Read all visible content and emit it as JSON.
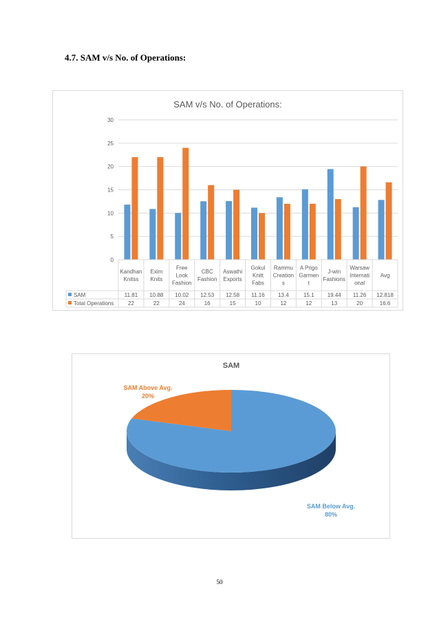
{
  "section_heading": "4.7. SAM v/s No. of Operations:",
  "page_number": "50",
  "colors": {
    "sam": "#5b9bd5",
    "operations": "#ed7d31",
    "grid": "#d9d9d9",
    "text": "#595959"
  },
  "chart_data": [
    {
      "type": "bar",
      "title": "SAM v/s No. of Operations:",
      "categories": [
        [
          "Kandhan",
          "Knitss"
        ],
        [
          "Exim",
          "Knits"
        ],
        [
          "Free",
          "Look",
          "Fashion"
        ],
        [
          "CBC",
          "Fashion"
        ],
        [
          "Aswathi",
          "Exports"
        ],
        [
          "Gokul",
          "Knitt",
          "Fabs"
        ],
        [
          "Rammu",
          "Creation",
          "s"
        ],
        [
          "A Prigo",
          "Garmen",
          "t"
        ],
        [
          "J-win",
          "Fashions"
        ],
        [
          "Warsaw",
          "Internati",
          "onal"
        ],
        [
          "Avg"
        ]
      ],
      "series": [
        {
          "name": "SAM",
          "values": [
            11.81,
            10.88,
            10.02,
            12.53,
            12.58,
            11.16,
            13.4,
            15.1,
            19.44,
            11.26,
            12.818
          ]
        },
        {
          "name": "Total Operations",
          "values": [
            22,
            22,
            24,
            16,
            15,
            10,
            12,
            12,
            13,
            20,
            16.6
          ]
        }
      ],
      "yticks": [
        "0",
        "5",
        "10",
        "15",
        "20",
        "25",
        "30"
      ],
      "ylim": [
        0,
        30
      ],
      "grid": true,
      "legend": "data-table"
    },
    {
      "type": "pie",
      "title": "SAM",
      "slices": [
        {
          "label": "SAM Below Avg.",
          "percent_label": "80%",
          "value": 80
        },
        {
          "label": "SAM Above Avg.",
          "percent_label": "20%",
          "value": 20
        }
      ]
    }
  ]
}
